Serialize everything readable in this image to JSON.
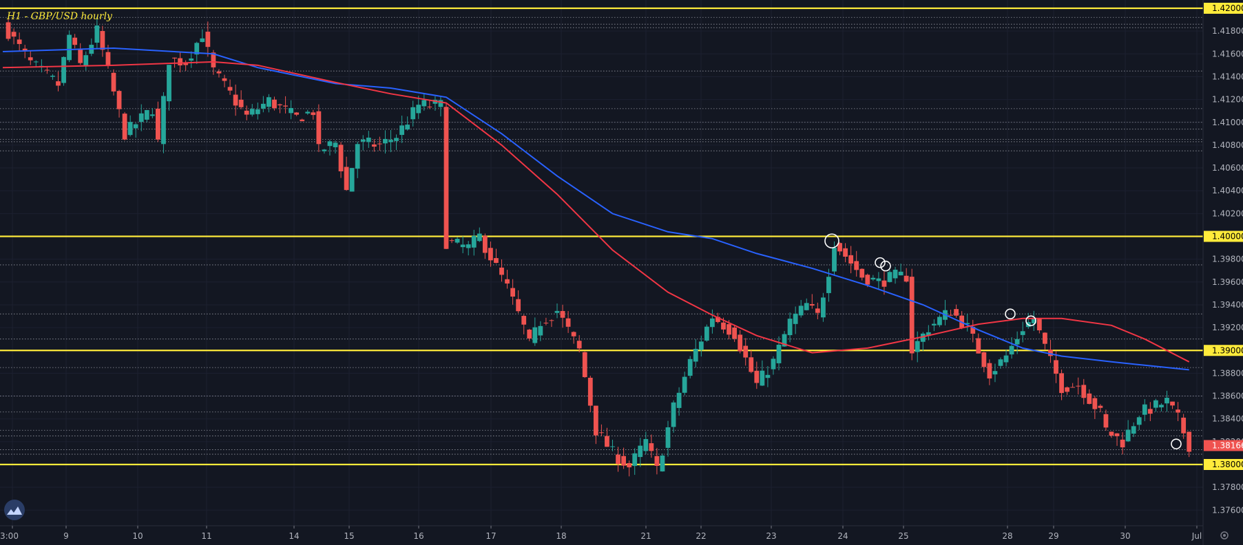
{
  "chart_data": {
    "type": "candlestick",
    "title": "H1 - GBP/USD hourly",
    "ylim": [
      1.3746,
      1.42075
    ],
    "y_ticks": [
      "1.37600",
      "1.37800",
      "1.38000",
      "1.38200",
      "1.38400",
      "1.38600",
      "1.38800",
      "1.39000",
      "1.39200",
      "1.39400",
      "1.39600",
      "1.39800",
      "1.40000",
      "1.40200",
      "1.40400",
      "1.40600",
      "1.40800",
      "1.41000",
      "1.41200",
      "1.41400",
      "1.41600",
      "1.41800",
      "1.42000"
    ],
    "x_ticks": [
      "3:00",
      "9",
      "10",
      "11",
      "14",
      "15",
      "16",
      "17",
      "18",
      "21",
      "22",
      "23",
      "24",
      "25",
      "28",
      "29",
      "30",
      "Jul"
    ],
    "key_levels": [
      1.42,
      1.4,
      1.39,
      1.38
    ],
    "key_level_labels": [
      "1.42000",
      "1.40000",
      "1.39000",
      "1.38000"
    ],
    "last_price": 1.38166,
    "last_price_label": "1.38166",
    "minor_levels": [
      1.4192,
      1.4186,
      1.4183,
      1.4145,
      1.4112,
      1.41,
      1.4094,
      1.4085,
      1.4083,
      1.4075,
      1.3975,
      1.3932,
      1.391,
      1.3885,
      1.386,
      1.3846,
      1.383,
      1.3825,
      1.3813,
      1.3809
    ],
    "path": [
      [
        0,
        1.4186
      ],
      [
        5,
        1.4152
      ],
      [
        10,
        1.4133
      ],
      [
        12,
        1.4176
      ],
      [
        14,
        1.415
      ],
      [
        17,
        1.418
      ],
      [
        22,
        1.409
      ],
      [
        27,
        1.4112
      ],
      [
        28,
        1.4082
      ],
      [
        30,
        1.4155
      ],
      [
        33,
        1.4153
      ],
      [
        36,
        1.4178
      ],
      [
        38,
        1.4145
      ],
      [
        44,
        1.4105
      ],
      [
        48,
        1.4119
      ],
      [
        53,
        1.4104
      ],
      [
        56,
        1.411
      ],
      [
        57,
        1.4075
      ],
      [
        60,
        1.4082
      ],
      [
        62,
        1.404
      ],
      [
        64,
        1.4082
      ],
      [
        68,
        1.408
      ],
      [
        71,
        1.4088
      ],
      [
        75,
        1.4115
      ],
      [
        79,
        1.4115
      ],
      [
        80,
        1.3995
      ],
      [
        84,
        1.399
      ],
      [
        86,
        1.4
      ],
      [
        91,
        1.3955
      ],
      [
        94,
        1.392
      ],
      [
        95,
        1.3905
      ],
      [
        97,
        1.3925
      ],
      [
        100,
        1.3935
      ],
      [
        104,
        1.39
      ],
      [
        107,
        1.383
      ],
      [
        110,
        1.381
      ],
      [
        113,
        1.3798
      ],
      [
        116,
        1.382
      ],
      [
        118,
        1.3795
      ],
      [
        121,
        1.385
      ],
      [
        124,
        1.389
      ],
      [
        128,
        1.393
      ],
      [
        132,
        1.3915
      ],
      [
        136,
        1.387
      ],
      [
        139,
        1.389
      ],
      [
        142,
        1.3925
      ],
      [
        145,
        1.394
      ],
      [
        147,
        1.393
      ],
      [
        149,
        1.397
      ],
      [
        150,
        1.3995
      ],
      [
        155,
        1.3965
      ],
      [
        158,
        1.396
      ],
      [
        161,
        1.3965
      ],
      [
        163,
        1.3965
      ],
      [
        164,
        1.39
      ],
      [
        167,
        1.392
      ],
      [
        171,
        1.3935
      ],
      [
        174,
        1.392
      ],
      [
        178,
        1.388
      ],
      [
        181,
        1.3895
      ],
      [
        184,
        1.392
      ],
      [
        186,
        1.3928
      ],
      [
        189,
        1.389
      ],
      [
        191,
        1.3868
      ],
      [
        194,
        1.387
      ],
      [
        198,
        1.3845
      ],
      [
        199,
        1.383
      ],
      [
        202,
        1.382
      ],
      [
        205,
        1.3845
      ],
      [
        210,
        1.3855
      ],
      [
        212,
        1.384
      ],
      [
        214,
        1.3817
      ]
    ],
    "series": [
      {
        "name": "",
        "color": "#2962ff",
        "values": [
          [
            0,
            1.4162
          ],
          [
            20,
            1.4165
          ],
          [
            38,
            1.416
          ],
          [
            46,
            1.4148
          ],
          [
            60,
            1.4134
          ],
          [
            70,
            1.413
          ],
          [
            80,
            1.4122
          ],
          [
            90,
            1.409
          ],
          [
            100,
            1.4053
          ],
          [
            110,
            1.402
          ],
          [
            120,
            1.4004
          ],
          [
            128,
            1.3998
          ],
          [
            136,
            1.3985
          ],
          [
            146,
            1.3972
          ],
          [
            156,
            1.3957
          ],
          [
            166,
            1.394
          ],
          [
            176,
            1.3918
          ],
          [
            184,
            1.3902
          ],
          [
            191,
            1.3895
          ],
          [
            200,
            1.389
          ],
          [
            206,
            1.3887
          ],
          [
            214,
            1.3883
          ]
        ]
      },
      {
        "name": "",
        "color": "#f23645",
        "values": [
          [
            0,
            1.4148
          ],
          [
            20,
            1.415
          ],
          [
            38,
            1.4153
          ],
          [
            46,
            1.415
          ],
          [
            60,
            1.4135
          ],
          [
            70,
            1.4125
          ],
          [
            80,
            1.4117
          ],
          [
            90,
            1.408
          ],
          [
            100,
            1.4037
          ],
          [
            110,
            1.3988
          ],
          [
            120,
            1.3951
          ],
          [
            128,
            1.3931
          ],
          [
            136,
            1.3913
          ],
          [
            146,
            1.3898
          ],
          [
            156,
            1.3902
          ],
          [
            166,
            1.3912
          ],
          [
            176,
            1.3923
          ],
          [
            184,
            1.3928
          ],
          [
            191,
            1.3928
          ],
          [
            200,
            1.3922
          ],
          [
            206,
            1.391
          ],
          [
            214,
            1.389
          ]
        ]
      }
    ],
    "markers": [
      [
        1.3996,
        10
      ],
      [
        1.3977,
        7
      ],
      [
        1.3974,
        7
      ],
      [
        1.3932,
        7
      ],
      [
        1.3926,
        7
      ],
      [
        1.3818,
        7
      ]
    ],
    "up_color": "#26a69a",
    "down_color": "#ef5350",
    "level_color": "#ffeb3b",
    "background": "#131722"
  },
  "tv_logo": "tradingview-logo-icon",
  "settings_icon": "gear-icon"
}
